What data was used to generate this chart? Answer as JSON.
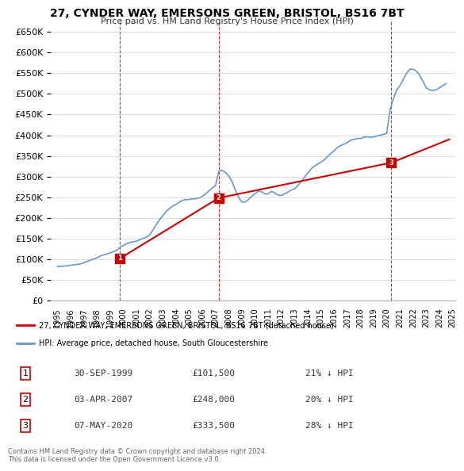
{
  "title": "27, CYNDER WAY, EMERSONS GREEN, BRISTOL, BS16 7BT",
  "subtitle": "Price paid vs. HM Land Registry's House Price Index (HPI)",
  "ylabel_ticks": [
    "£0",
    "£50K",
    "£100K",
    "£150K",
    "£200K",
    "£250K",
    "£300K",
    "£350K",
    "£400K",
    "£450K",
    "£500K",
    "£550K",
    "£600K",
    "£650K"
  ],
  "ylim": [
    0,
    680000
  ],
  "yticks": [
    0,
    50000,
    100000,
    150000,
    200000,
    250000,
    300000,
    350000,
    400000,
    450000,
    500000,
    550000,
    600000,
    650000
  ],
  "transactions": [
    {
      "date_num": 1999.75,
      "price": 101500,
      "label": "1"
    },
    {
      "date_num": 2007.25,
      "price": 248000,
      "label": "2"
    },
    {
      "date_num": 2020.35,
      "price": 333500,
      "label": "3"
    }
  ],
  "transaction_info": [
    {
      "num": "1",
      "date": "30-SEP-1999",
      "price": "£101,500",
      "pct": "21% ↓ HPI"
    },
    {
      "num": "2",
      "date": "03-APR-2007",
      "price": "£248,000",
      "pct": "20% ↓ HPI"
    },
    {
      "num": "3",
      "date": "07-MAY-2020",
      "price": "£333,500",
      "pct": "28% ↓ HPI"
    }
  ],
  "legend_entries": [
    "27, CYNDER WAY, EMERSONS GREEN, BRISTOL, BS16 7BT (detached house)",
    "HPI: Average price, detached house, South Gloucestershire"
  ],
  "red_line_color": "#cc0000",
  "blue_line_color": "#6699cc",
  "marker_color": "#cc0000",
  "vline_color": "#cc0000",
  "background_color": "#ffffff",
  "grid_color": "#dddddd",
  "footer_text": "Contains HM Land Registry data © Crown copyright and database right 2024.\nThis data is licensed under the Open Government Licence v3.0.",
  "hpi_data": {
    "years": [
      1995.0,
      1995.25,
      1995.5,
      1995.75,
      1996.0,
      1996.25,
      1996.5,
      1996.75,
      1997.0,
      1997.25,
      1997.5,
      1997.75,
      1998.0,
      1998.25,
      1998.5,
      1998.75,
      1999.0,
      1999.25,
      1999.5,
      1999.75,
      2000.0,
      2000.25,
      2000.5,
      2000.75,
      2001.0,
      2001.25,
      2001.5,
      2001.75,
      2002.0,
      2002.25,
      2002.5,
      2002.75,
      2003.0,
      2003.25,
      2003.5,
      2003.75,
      2004.0,
      2004.25,
      2004.5,
      2004.75,
      2005.0,
      2005.25,
      2005.5,
      2005.75,
      2006.0,
      2006.25,
      2006.5,
      2006.75,
      2007.0,
      2007.25,
      2007.5,
      2007.75,
      2008.0,
      2008.25,
      2008.5,
      2008.75,
      2009.0,
      2009.25,
      2009.5,
      2009.75,
      2010.0,
      2010.25,
      2010.5,
      2010.75,
      2011.0,
      2011.25,
      2011.5,
      2011.75,
      2012.0,
      2012.25,
      2012.5,
      2012.75,
      2013.0,
      2013.25,
      2013.5,
      2013.75,
      2014.0,
      2014.25,
      2014.5,
      2014.75,
      2015.0,
      2015.25,
      2015.5,
      2015.75,
      2016.0,
      2016.25,
      2016.5,
      2016.75,
      2017.0,
      2017.25,
      2017.5,
      2017.75,
      2018.0,
      2018.25,
      2018.5,
      2018.75,
      2019.0,
      2019.25,
      2019.5,
      2019.75,
      2020.0,
      2020.25,
      2020.5,
      2020.75,
      2021.0,
      2021.25,
      2021.5,
      2021.75,
      2022.0,
      2022.25,
      2022.5,
      2022.75,
      2023.0,
      2023.25,
      2023.5,
      2023.75,
      2024.0,
      2024.25,
      2024.5
    ],
    "values": [
      82000,
      82500,
      83000,
      83500,
      85000,
      86000,
      87000,
      88000,
      91000,
      94000,
      97000,
      100000,
      103000,
      107000,
      110000,
      112000,
      115000,
      118000,
      121000,
      128500,
      133000,
      137000,
      140000,
      142000,
      143000,
      147000,
      150000,
      153000,
      158000,
      170000,
      183000,
      195000,
      205000,
      215000,
      222000,
      228000,
      232000,
      238000,
      242000,
      244000,
      244000,
      246000,
      246000,
      248000,
      252000,
      258000,
      265000,
      272000,
      278000,
      312000,
      315000,
      310000,
      302000,
      288000,
      268000,
      250000,
      238000,
      238000,
      244000,
      252000,
      258000,
      265000,
      263000,
      258000,
      258000,
      264000,
      260000,
      255000,
      254000,
      258000,
      262000,
      267000,
      270000,
      278000,
      288000,
      298000,
      308000,
      318000,
      325000,
      330000,
      335000,
      340000,
      348000,
      356000,
      362000,
      370000,
      375000,
      378000,
      382000,
      388000,
      390000,
      392000,
      392000,
      395000,
      396000,
      395000,
      396000,
      398000,
      400000,
      402000,
      405000,
      462000,
      488000,
      510000,
      520000,
      535000,
      550000,
      560000,
      560000,
      555000,
      545000,
      530000,
      515000,
      510000,
      508000,
      510000,
      515000,
      520000,
      525000
    ]
  },
  "price_line_data": {
    "years": [
      1999.75,
      2007.25,
      2020.35,
      2024.75
    ],
    "values": [
      101500,
      248000,
      333500,
      390000
    ]
  },
  "red_line_extended": {
    "segments": [
      {
        "years": [
          1999.75,
          2007.25
        ],
        "values": [
          101500,
          248000
        ]
      },
      {
        "years": [
          2007.25,
          2020.35
        ],
        "values": [
          248000,
          333500
        ]
      },
      {
        "years": [
          2020.35,
          2024.75
        ],
        "values": [
          333500,
          390000
        ]
      }
    ]
  }
}
